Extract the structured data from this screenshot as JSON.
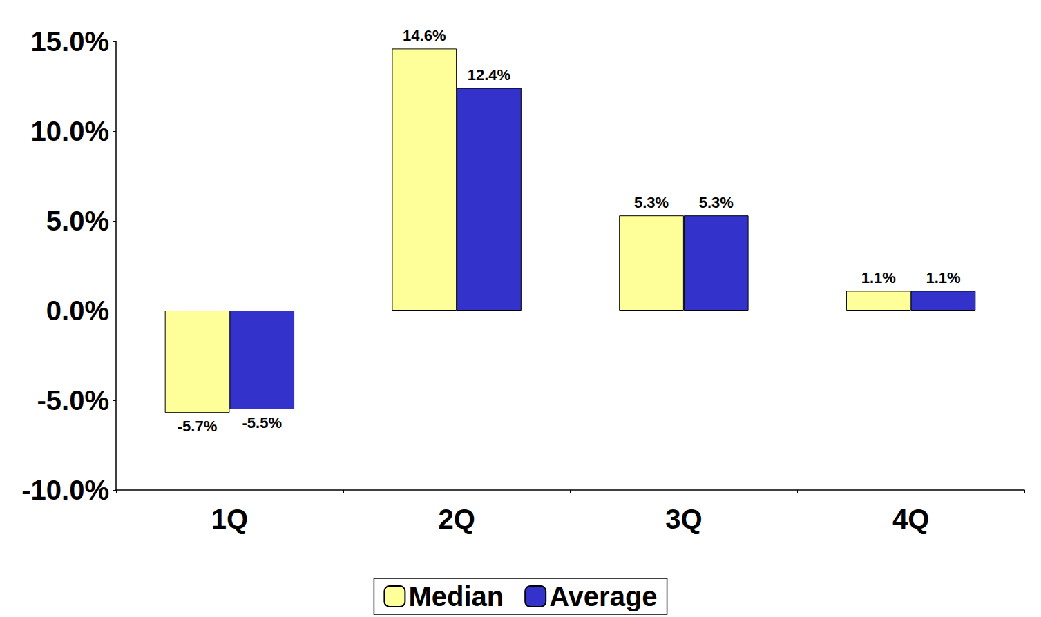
{
  "chart_data": {
    "type": "bar",
    "categories": [
      "1Q",
      "2Q",
      "3Q",
      "4Q"
    ],
    "series": [
      {
        "name": "Median",
        "color": "#ffff99",
        "values": [
          -5.7,
          14.6,
          5.3,
          1.1
        ],
        "value_labels": [
          "-5.7%",
          "14.6%",
          "5.3%",
          "1.1%"
        ]
      },
      {
        "name": "Average",
        "color": "#3333cc",
        "values": [
          -5.5,
          12.4,
          5.3,
          1.1
        ],
        "value_labels": [
          "-5.5%",
          "12.4%",
          "5.3%",
          "1.1%"
        ]
      }
    ],
    "ylim": [
      -10,
      15
    ],
    "yticks": [
      {
        "value": -10,
        "label": "-10.0%"
      },
      {
        "value": -5,
        "label": "-5.0%"
      },
      {
        "value": 0,
        "label": "0.0%"
      },
      {
        "value": 5,
        "label": "5.0%"
      },
      {
        "value": 10,
        "label": "10.0%"
      },
      {
        "value": 15,
        "label": "15.0%"
      }
    ],
    "grid": false,
    "legend": "bottom",
    "data_labels": true
  }
}
